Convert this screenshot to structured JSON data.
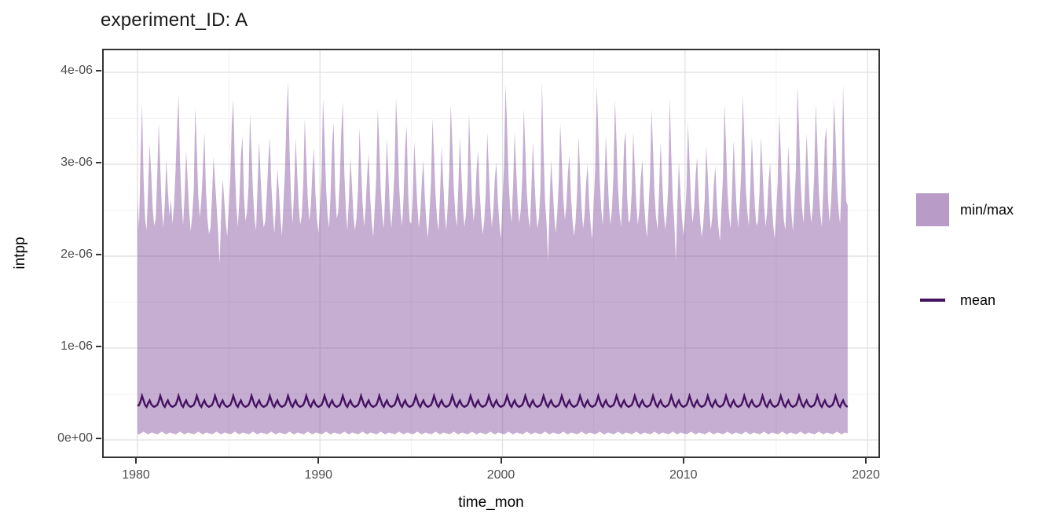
{
  "title": "experiment_ID: A",
  "y_axis": {
    "label": "intpp",
    "ticks": [
      {
        "value": 0,
        "label": "0e+00"
      },
      {
        "value": 1,
        "label": "1e-06"
      },
      {
        "value": 2,
        "label": "2e-06"
      },
      {
        "value": 3,
        "label": "3e-06"
      },
      {
        "value": 4,
        "label": "4e-06"
      }
    ],
    "minor_ticks": [
      0.5,
      1.5,
      2.5,
      3.5
    ]
  },
  "x_axis": {
    "label": "time_mon",
    "ticks": [
      {
        "value": 1980,
        "label": "1980"
      },
      {
        "value": 1990,
        "label": "1990"
      },
      {
        "value": 2000,
        "label": "2000"
      },
      {
        "value": 2010,
        "label": "2010"
      },
      {
        "value": 2020,
        "label": "2020"
      }
    ],
    "minor_ticks": [
      1985,
      1995,
      2005,
      2015
    ]
  },
  "legend": {
    "items": [
      {
        "label": "min/max",
        "type": "fill",
        "color": "#7e4b99",
        "opacity": 0.45
      },
      {
        "label": "mean",
        "type": "line",
        "color": "#451262"
      }
    ]
  },
  "colors": {
    "background": "#ffffff",
    "panel_border": "#343434",
    "grid_major": "#e3e3e3",
    "grid_minor": "#f1f1f1",
    "tick_mark": "#333333",
    "tick_text": "#4d4d4d",
    "ribbon_fill": "#7e4b99",
    "mean_line": "#451262"
  },
  "chart_data": {
    "type": "area",
    "title": "experiment_ID: A",
    "xlabel": "time_mon",
    "ylabel": "intpp",
    "y_unit_scale": "1e-06",
    "x_start": 1980,
    "x_step_years": 0.08333,
    "n_points": 468,
    "xlim": [
      1978.15,
      2020.6
    ],
    "ylim": [
      -0.18,
      4.24
    ],
    "grid": true,
    "legend_position": "right",
    "series": [
      {
        "name": "min/max",
        "type": "ribbon",
        "max_by_year": [
          [
            2.62,
            2.31,
            3.05,
            3.66,
            2.84,
            2.41,
            2.28,
            2.73,
            3.22,
            2.91,
            2.52,
            2.33
          ],
          [
            2.41,
            2.88,
            3.45,
            2.95,
            2.52,
            2.31,
            2.58,
            3.05,
            2.71,
            2.44,
            2.62,
            2.35
          ],
          [
            2.55,
            2.92,
            3.38,
            3.75,
            3.02,
            2.58,
            2.34,
            2.66,
            3.15,
            2.82,
            2.48,
            2.27
          ],
          [
            2.45,
            2.71,
            3.62,
            3.18,
            2.65,
            2.42,
            2.61,
            2.95,
            3.35,
            2.73,
            2.41,
            2.24
          ],
          [
            2.31,
            2.64,
            3.08,
            2.82,
            2.55,
            2.28,
            1.92,
            2.45,
            2.85,
            2.62,
            2.38,
            2.21
          ],
          [
            2.52,
            2.85,
            3.42,
            3.7,
            2.98,
            2.55,
            2.32,
            2.62,
            3.08,
            3.31,
            2.66,
            2.38
          ],
          [
            2.48,
            2.75,
            3.55,
            3.12,
            2.68,
            2.41,
            2.28,
            2.78,
            3.25,
            2.85,
            2.51,
            2.31
          ],
          [
            2.38,
            2.66,
            3.02,
            3.3,
            2.78,
            2.48,
            2.25,
            2.55,
            2.95,
            2.71,
            2.42,
            2.22
          ],
          [
            2.58,
            2.95,
            3.52,
            3.9,
            3.15,
            2.62,
            2.35,
            2.72,
            3.28,
            2.91,
            2.55,
            2.34
          ],
          [
            2.44,
            2.78,
            3.5,
            3.05,
            2.62,
            2.38,
            2.55,
            2.92,
            3.18,
            2.68,
            2.41,
            2.25
          ],
          [
            2.55,
            2.88,
            3.72,
            3.28,
            2.75,
            2.45,
            2.31,
            2.68,
            3.22,
            3.45,
            2.72,
            2.41
          ],
          [
            2.48,
            2.82,
            3.35,
            3.68,
            2.92,
            2.52,
            2.28,
            2.61,
            3.08,
            2.78,
            2.45,
            2.28
          ],
          [
            2.41,
            2.72,
            3.4,
            2.98,
            2.58,
            2.32,
            2.52,
            2.88,
            3.12,
            2.65,
            2.38,
            2.21
          ],
          [
            2.52,
            2.85,
            3.6,
            3.22,
            2.71,
            2.44,
            2.3,
            2.75,
            3.28,
            2.88,
            2.5,
            2.31
          ],
          [
            2.58,
            2.92,
            3.72,
            3.35,
            2.78,
            2.48,
            2.33,
            2.65,
            3.18,
            3.42,
            2.68,
            2.38
          ],
          [
            2.35,
            2.65,
            3.25,
            2.92,
            2.55,
            2.31,
            2.48,
            2.82,
            3.05,
            2.62,
            2.36,
            2.2
          ],
          [
            2.48,
            2.8,
            3.5,
            3.1,
            2.66,
            2.4,
            2.28,
            2.7,
            3.2,
            2.82,
            2.48,
            2.28
          ],
          [
            2.54,
            2.9,
            3.65,
            3.25,
            2.74,
            2.46,
            2.32,
            2.76,
            3.3,
            2.9,
            2.52,
            2.32
          ],
          [
            2.46,
            2.76,
            3.55,
            3.08,
            2.62,
            2.38,
            2.55,
            2.95,
            3.15,
            2.7,
            2.42,
            2.24
          ],
          [
            2.38,
            2.68,
            3.35,
            2.95,
            2.56,
            2.32,
            2.5,
            2.85,
            3.02,
            2.6,
            2.35,
            2.19
          ],
          [
            2.6,
            2.98,
            3.87,
            3.42,
            2.85,
            2.52,
            2.36,
            2.78,
            3.35,
            2.95,
            2.58,
            2.36
          ],
          [
            2.5,
            2.84,
            3.6,
            3.18,
            2.7,
            2.44,
            2.3,
            2.72,
            3.25,
            2.85,
            2.5,
            2.3
          ],
          [
            2.42,
            2.74,
            3.9,
            3.15,
            2.6,
            2.35,
            1.95,
            2.58,
            3.05,
            2.75,
            2.45,
            2.25
          ],
          [
            2.46,
            2.8,
            3.45,
            3.05,
            2.64,
            2.4,
            2.54,
            2.9,
            3.1,
            2.66,
            2.4,
            2.22
          ],
          [
            2.36,
            2.66,
            3.3,
            2.92,
            2.54,
            2.3,
            2.46,
            2.8,
            3.0,
            2.58,
            2.34,
            2.18
          ],
          [
            2.58,
            2.96,
            3.85,
            3.38,
            2.82,
            2.5,
            2.34,
            2.76,
            3.32,
            2.92,
            2.56,
            2.34
          ],
          [
            2.52,
            2.88,
            3.7,
            3.24,
            2.74,
            2.46,
            2.32,
            2.7,
            3.22,
            3.35,
            2.64,
            2.36
          ],
          [
            2.4,
            2.7,
            3.35,
            2.96,
            2.58,
            2.34,
            2.5,
            2.86,
            3.05,
            2.62,
            2.37,
            2.2
          ],
          [
            2.5,
            2.84,
            3.6,
            3.16,
            2.68,
            2.42,
            2.29,
            2.72,
            3.24,
            2.84,
            2.49,
            2.29
          ],
          [
            2.44,
            2.76,
            3.72,
            3.1,
            2.62,
            2.36,
            1.95,
            2.55,
            3.02,
            2.72,
            2.42,
            2.23
          ],
          [
            2.42,
            2.74,
            3.45,
            3.02,
            2.6,
            2.36,
            2.52,
            2.88,
            3.08,
            2.64,
            2.38,
            2.21
          ],
          [
            2.34,
            2.62,
            3.2,
            2.88,
            2.52,
            2.28,
            2.44,
            2.78,
            2.98,
            2.56,
            2.32,
            2.16
          ],
          [
            2.52,
            2.86,
            3.65,
            3.2,
            2.7,
            2.44,
            2.3,
            2.74,
            3.26,
            2.86,
            2.51,
            2.31
          ],
          [
            2.56,
            2.92,
            3.75,
            3.3,
            2.76,
            2.48,
            2.33,
            2.78,
            3.3,
            2.9,
            2.54,
            2.33
          ],
          [
            2.38,
            2.68,
            3.3,
            2.94,
            2.56,
            2.32,
            2.48,
            2.82,
            3.02,
            2.6,
            2.35,
            2.19
          ],
          [
            2.48,
            2.82,
            3.55,
            3.12,
            2.66,
            2.4,
            2.28,
            2.7,
            3.2,
            2.8,
            2.47,
            2.27
          ],
          [
            2.58,
            2.96,
            3.85,
            3.4,
            2.84,
            2.52,
            2.36,
            2.78,
            3.34,
            2.94,
            2.58,
            2.36
          ],
          [
            2.52,
            2.88,
            3.65,
            3.22,
            2.72,
            2.46,
            2.32,
            2.74,
            3.26,
            3.4,
            2.66,
            2.37
          ],
          [
            2.56,
            2.94,
            3.7,
            3.32,
            2.78,
            2.5,
            2.35,
            2.8,
            3.87,
            3.1,
            2.6,
            2.55
          ]
        ],
        "min_annual_cycle": [
          0.07,
          0.06,
          0.07,
          0.08,
          0.09,
          0.08,
          0.07,
          0.06,
          0.07,
          0.08,
          0.08,
          0.07
        ]
      },
      {
        "name": "mean",
        "type": "line",
        "annual_cycle": [
          0.37,
          0.38,
          0.42,
          0.48,
          0.43,
          0.38,
          0.36,
          0.4,
          0.43,
          0.39,
          0.37,
          0.36
        ]
      }
    ]
  }
}
